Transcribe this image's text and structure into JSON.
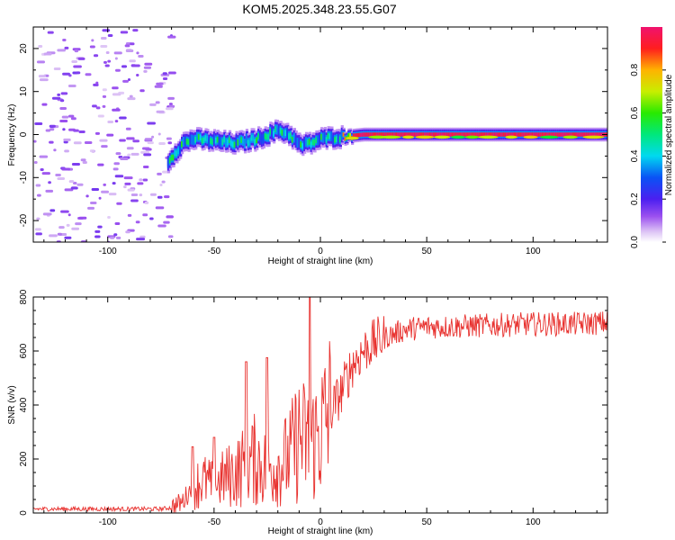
{
  "figure_title": "KOM5.2025.348.23.55.G07",
  "chart_data": [
    {
      "type": "heatmap",
      "title": "KOM5.2025.348.23.55.G07",
      "xlabel": "Height of straight line (km)",
      "ylabel": "Frequency (Hz)",
      "xlim": [
        -135,
        135
      ],
      "ylim": [
        -25,
        25
      ],
      "xticks": [
        -100,
        -50,
        0,
        50,
        100
      ],
      "yticks": [
        -20,
        -10,
        0,
        10,
        20
      ],
      "xtick_labels": [
        "-100",
        "-50",
        "0",
        "50",
        "100"
      ],
      "ytick_labels": [
        "-20",
        "-10",
        "0",
        "10",
        "20"
      ],
      "colorbar": {
        "label": "Normalized spectral amplitude",
        "range": [
          0,
          1
        ],
        "ticks": [
          "0.0",
          "0.2",
          "0.4",
          "0.6",
          "0.8"
        ],
        "tick_values": [
          0.0,
          0.2,
          0.4,
          0.6,
          0.8
        ],
        "colormap": "rainbow (lavender → violet → blue → cyan → green → yellow → orange → red → magenta)"
      },
      "ridge": [
        {
          "x": -70,
          "y": -5
        },
        {
          "x": -65,
          "y": -2
        },
        {
          "x": -60,
          "y": -1
        },
        {
          "x": -50,
          "y": -1.5
        },
        {
          "x": -40,
          "y": -2
        },
        {
          "x": -30,
          "y": -1
        },
        {
          "x": -20,
          "y": 1
        },
        {
          "x": -15,
          "y": 0
        },
        {
          "x": -10,
          "y": -2.5
        },
        {
          "x": -5,
          "y": -2
        },
        {
          "x": 0,
          "y": -1
        },
        {
          "x": 10,
          "y": -0.5
        },
        {
          "x": 20,
          "y": 0
        },
        {
          "x": 60,
          "y": 0
        },
        {
          "x": 100,
          "y": 0
        },
        {
          "x": 135,
          "y": 0
        }
      ],
      "notes": "Scattered low-amplitude noise for heights below about -70 km; coherent tone near 0 Hz from about -70 km upward, saturated (amplitude ~1) above about 10 km."
    },
    {
      "type": "line",
      "xlabel": "Height of straight line (km)",
      "ylabel": "SNR (v/v)",
      "xlim": [
        -135,
        135
      ],
      "ylim": [
        0,
        800
      ],
      "xticks": [
        -100,
        -50,
        0,
        50,
        100
      ],
      "yticks": [
        0,
        200,
        400,
        600,
        800
      ],
      "xtick_labels": [
        "-100",
        "-50",
        "0",
        "50",
        "100"
      ],
      "ytick_labels": [
        "0",
        "200",
        "400",
        "600",
        "800"
      ],
      "series": [
        {
          "name": "SNR",
          "color": "#e8312e",
          "x": [
            -135,
            -100,
            -75,
            -70,
            -65,
            -60,
            -55,
            -50,
            -45,
            -40,
            -35,
            -30,
            -25,
            -20,
            -15,
            -10,
            -5,
            0,
            5,
            10,
            15,
            20,
            25,
            30,
            40,
            50,
            60,
            80,
            100,
            120,
            135
          ],
          "y": [
            15,
            15,
            15,
            20,
            40,
            100,
            120,
            100,
            130,
            150,
            180,
            200,
            160,
            180,
            200,
            280,
            250,
            300,
            380,
            450,
            550,
            600,
            630,
            650,
            680,
            690,
            690,
            695,
            700,
            700,
            705
          ]
        }
      ],
      "notable_peaks": [
        {
          "x": -60,
          "y": 245
        },
        {
          "x": -50,
          "y": 280
        },
        {
          "x": -35,
          "y": 560
        },
        {
          "x": -25,
          "y": 575
        },
        {
          "x": -5,
          "y": 800
        }
      ]
    }
  ]
}
